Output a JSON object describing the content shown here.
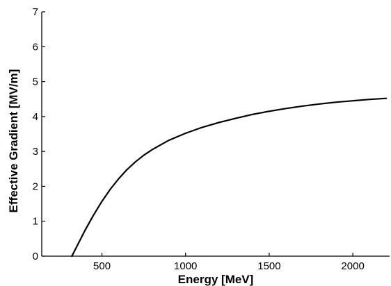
{
  "chart_data": {
    "type": "line",
    "title": "",
    "xlabel": "Energy [MeV]",
    "ylabel": "Effective Gradient [MV/m]",
    "xlim": [
      140,
      2220
    ],
    "ylim": [
      0,
      7
    ],
    "xticks": [
      500,
      1000,
      1500,
      2000
    ],
    "yticks": [
      0,
      1,
      2,
      3,
      4,
      5,
      6,
      7
    ],
    "grid": false,
    "series": [
      {
        "name": "",
        "x": [
          320,
          350,
          400,
          450,
          500,
          550,
          600,
          650,
          700,
          750,
          800,
          900,
          1000,
          1100,
          1200,
          1300,
          1400,
          1500,
          1600,
          1700,
          1800,
          1900,
          2000,
          2100,
          2200
        ],
        "y": [
          0.0,
          0.28,
          0.75,
          1.18,
          1.57,
          1.92,
          2.22,
          2.48,
          2.7,
          2.89,
          3.05,
          3.32,
          3.52,
          3.69,
          3.83,
          3.95,
          4.06,
          4.15,
          4.23,
          4.3,
          4.36,
          4.41,
          4.45,
          4.49,
          4.52
        ]
      }
    ]
  }
}
